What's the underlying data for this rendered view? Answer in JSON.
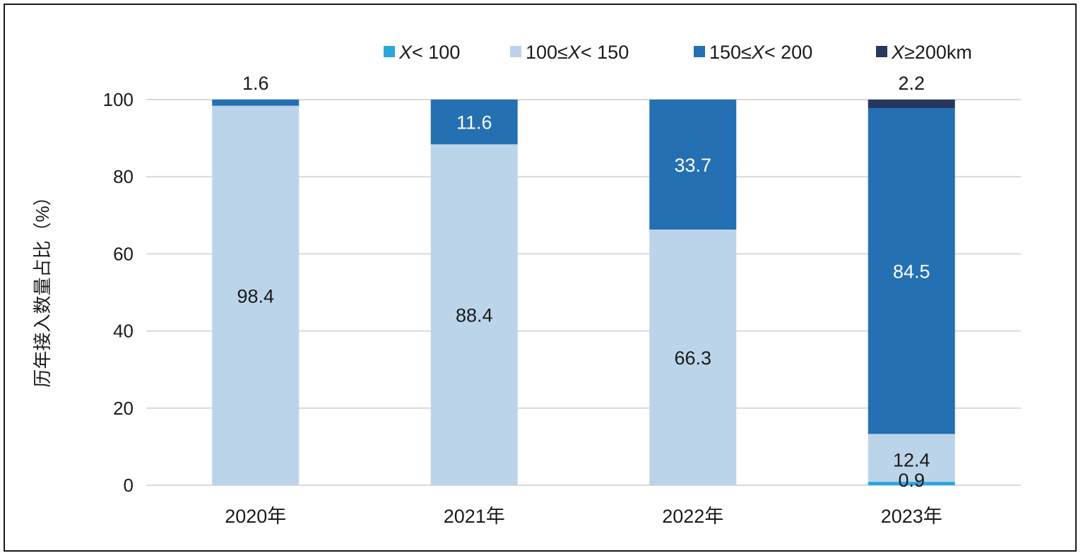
{
  "chart_data": {
    "type": "bar",
    "stacked": true,
    "title": "",
    "xlabel": "",
    "ylabel": "历年接入数量占比（%）",
    "ylim": [
      0,
      100
    ],
    "yticks": [
      0,
      20,
      40,
      60,
      80,
      100
    ],
    "grid": true,
    "legend_position": "top-right",
    "categories": [
      "2020年",
      "2021年",
      "2022年",
      "2023年"
    ],
    "series": [
      {
        "key": "lt100",
        "name": "X< 100",
        "legend_italic": "X",
        "legend_rest": "< 100",
        "color": "#2aa6dc",
        "values": [
          0,
          0,
          0,
          0.9
        ],
        "labels": [
          "",
          "",
          "",
          "0.9"
        ],
        "label_color": "#1a1a1a"
      },
      {
        "key": "100to150",
        "name": "100≤X< 150",
        "legend_pre": "100≤",
        "legend_italic": "X",
        "legend_rest": "< 150",
        "color": "#bcd4ea",
        "values": [
          98.4,
          88.4,
          66.3,
          12.4
        ],
        "labels": [
          "98.4",
          "88.4",
          "66.3",
          "12.4"
        ],
        "label_color": "#1a1a1a"
      },
      {
        "key": "150to200",
        "name": "150≤X< 200",
        "legend_pre": "150≤",
        "legend_italic": "X",
        "legend_rest": "< 200",
        "color": "#2470b3",
        "values": [
          1.6,
          11.6,
          33.7,
          84.5
        ],
        "labels": [
          "1.6",
          "11.6",
          "33.7",
          "84.5"
        ],
        "label_color": "#ffffff"
      },
      {
        "key": "ge200",
        "name": "X≥200km",
        "legend_italic": "X",
        "legend_rest": "≥200km",
        "color": "#27375e",
        "values": [
          0,
          0,
          0,
          2.2
        ],
        "labels": [
          "",
          "",
          "",
          "2.2"
        ],
        "label_color": "#1a1a1a"
      }
    ]
  }
}
